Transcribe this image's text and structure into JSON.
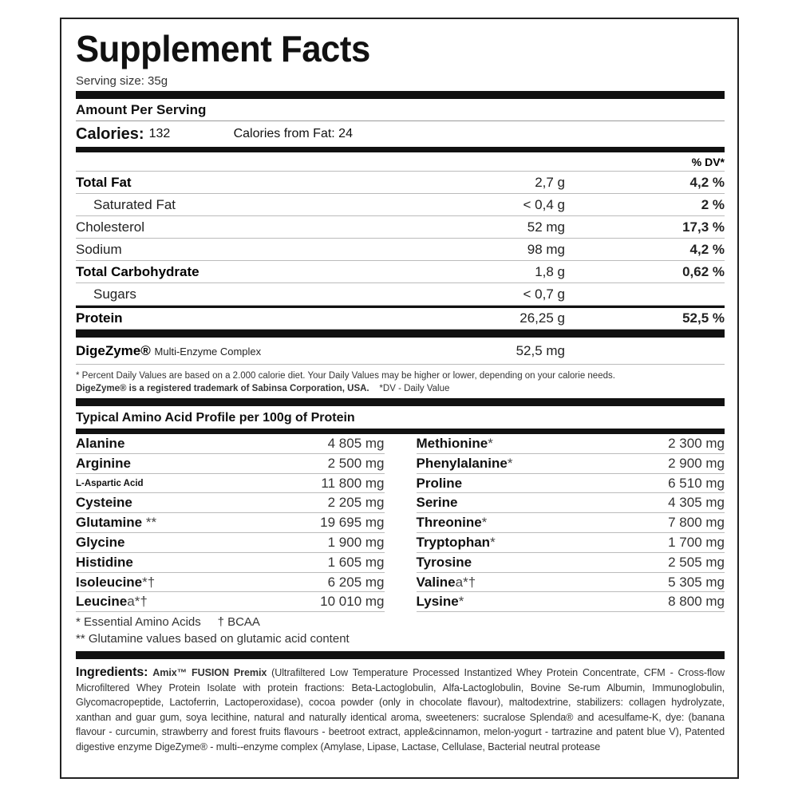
{
  "title": "Supplement Facts",
  "serving_size": "Serving size: 35g",
  "amount_per_serving": "Amount Per Serving",
  "calories": {
    "label": "Calories:",
    "value": "132",
    "from_fat": "Calories from Fat: 24"
  },
  "dv_header": "% DV*",
  "nutrients": [
    {
      "name": "Total Fat",
      "amount": "2,7 g",
      "dv": "4,2 %"
    },
    {
      "name": "Saturated Fat",
      "amount": "< 0,4 g",
      "dv": "2 %"
    },
    {
      "name": "Cholesterol",
      "amount": "52 mg",
      "dv": "17,3 %"
    },
    {
      "name": "Sodium",
      "amount": "98 mg",
      "dv": "4,2 %"
    },
    {
      "name": "Total Carbohydrate",
      "amount": "1,8 g",
      "dv": "0,62 %"
    },
    {
      "name": "Sugars",
      "amount": "< 0,7 g",
      "dv": ""
    },
    {
      "name": "Protein",
      "amount": "26,25 g",
      "dv": "52,5 %"
    }
  ],
  "digezyme": {
    "name": "DigeZyme®",
    "desc": "Multi-Enzyme Complex",
    "amount": "52,5 mg"
  },
  "footnote": {
    "line1": "* Percent Daily Values are based on a 2.000 calorie diet. Your Daily Values may be higher or lower, depending on your calorie needs.",
    "trademark": "DigeZyme® is a registered trademark of Sabinsa Corporation, USA.",
    "dv": "*DV - Daily Value"
  },
  "amino_header": "Typical Amino Acid Profile per 100g of Protein",
  "amino_left": [
    {
      "name": "Alanine",
      "mark": "",
      "value": "4 805 mg"
    },
    {
      "name": "Arginine",
      "mark": "",
      "value": "2 500 mg"
    },
    {
      "name": "L-Aspartic Acid",
      "mark": "",
      "value": "11 800 mg"
    },
    {
      "name": "Cysteine",
      "mark": "",
      "value": "2 205 mg"
    },
    {
      "name": "Glutamine",
      "mark": " **",
      "value": "19 695 mg"
    },
    {
      "name": "Glycine",
      "mark": "",
      "value": "1 900 mg"
    },
    {
      "name": "Histidine",
      "mark": "",
      "value": "1 605 mg"
    },
    {
      "name": "Isoleucine",
      "mark": "*†",
      "value": "6 205 mg"
    },
    {
      "name": "Leucine",
      "mark": "a*†",
      "value": "10 010 mg"
    }
  ],
  "amino_right": [
    {
      "name": "Methionine",
      "mark": "*",
      "value": "2 300 mg"
    },
    {
      "name": "Phenylalanine",
      "mark": "*",
      "value": "2 900 mg"
    },
    {
      "name": "Proline",
      "mark": "",
      "value": "6 510 mg"
    },
    {
      "name": "Serine",
      "mark": "",
      "value": "4 305 mg"
    },
    {
      "name": "Threonine",
      "mark": "*",
      "value": "7 800 mg"
    },
    {
      "name": "Tryptophan",
      "mark": "*",
      "value": "1 700 mg"
    },
    {
      "name": "Tyrosine",
      "mark": "",
      "value": "2 505 mg"
    },
    {
      "name": "Valine",
      "mark": "a*†",
      "value": "5 305 mg"
    },
    {
      "name": "Lysine",
      "mark": "*",
      "value": "8 800 mg"
    }
  ],
  "notes": [
    "* Essential Amino Acids     † BCAA",
    "** Glutamine values based on glutamic acid content"
  ],
  "ingredients": {
    "label": "Ingredients:",
    "premix": "Amix™ FUSION Premix",
    "text": "(Ultrafiltered Low Temperature Processed Instantized Whey Protein Concentrate, CFM - Cross-flow Microfiltered Whey Protein Isolate with protein fractions: Beta-Lactoglobulin, Alfa-Lactoglobulin, Bovine Se-rum Albumin, Immunoglobulin, Glycomacropeptide, Lactoferrin, Lactoperoxidase), cocoa powder (only in chocolate flavour), maltodextrine, stabilizers: collagen hydrolyzate, xanthan and guar gum, soya lecithine, natural and naturally identical aroma, sweeteners: sucralose Splenda® and acesulfame-K, dye: (banana flavour - curcumin, strawberry and forest fruits flavours - beetroot extract, apple&cinnamon, melon-yogurt - tartrazine and patent blue V), Patented digestive enzyme DigeZyme® - multi--enzyme complex (Amylase, Lipase, Lactase, Cellulase, Bacterial neutral protease"
  }
}
